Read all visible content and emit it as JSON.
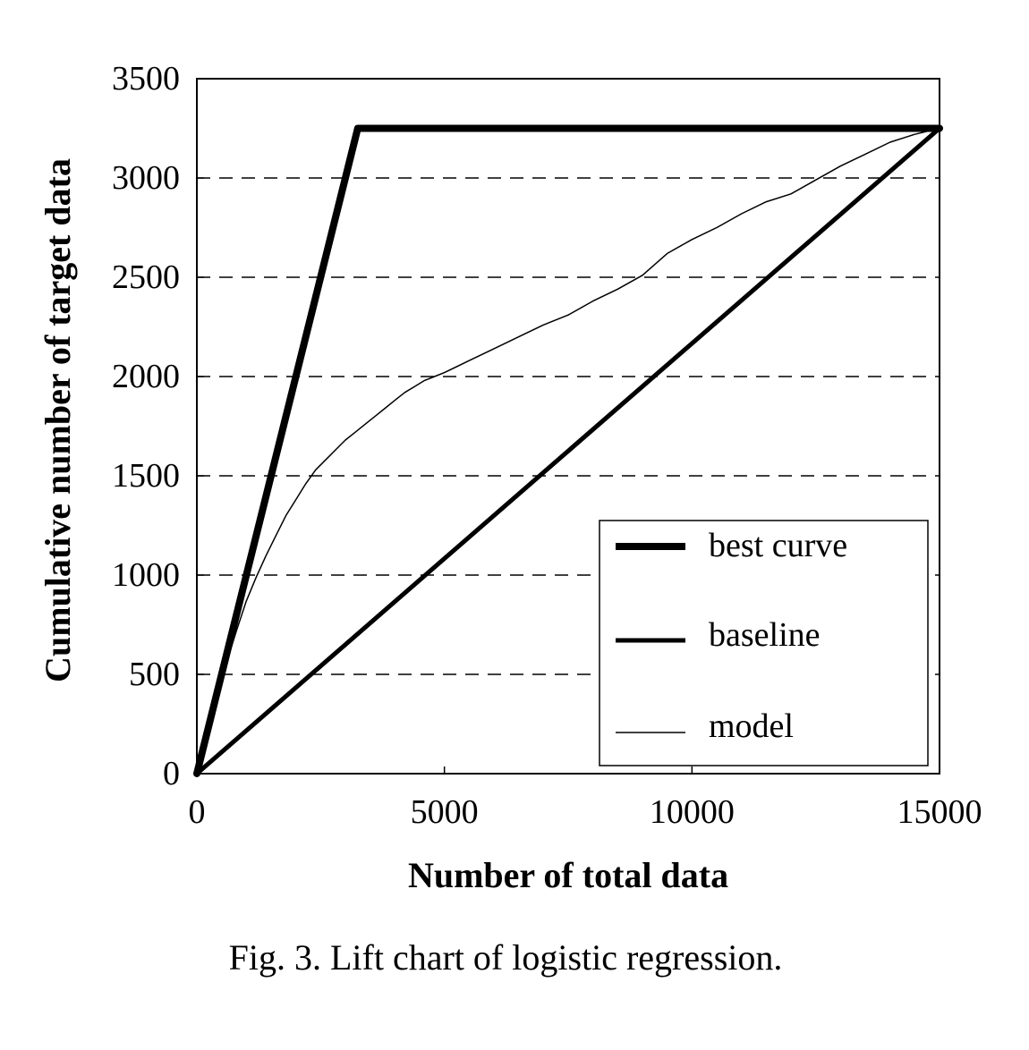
{
  "chart_data": {
    "type": "line",
    "xlabel": "Number of total data",
    "ylabel": "Cumulative number of target data",
    "xlim": [
      0,
      15000
    ],
    "ylim": [
      0,
      3500
    ],
    "x_ticks": [
      "0",
      "5000",
      "10000",
      "15000"
    ],
    "y_ticks": [
      "0",
      "500",
      "1000",
      "1500",
      "2000",
      "2500",
      "3000",
      "3500"
    ],
    "grid": "horizontal dashed",
    "legend_position": "bottom-right",
    "series": [
      {
        "name": "best curve",
        "style": "thick",
        "x": [
          0,
          3250,
          15000
        ],
        "y": [
          0,
          3250,
          3250
        ]
      },
      {
        "name": "baseline",
        "style": "medium",
        "x": [
          0,
          15000
        ],
        "y": [
          0,
          3250
        ]
      },
      {
        "name": "model",
        "style": "thin",
        "x": [
          0,
          200,
          400,
          600,
          800,
          1000,
          1200,
          1400,
          1600,
          1800,
          2000,
          2200,
          2400,
          2600,
          2800,
          3000,
          3200,
          3400,
          3600,
          3800,
          4000,
          4200,
          4400,
          4600,
          4800,
          5000,
          5500,
          6000,
          6500,
          7000,
          7500,
          8000,
          8500,
          9000,
          9500,
          10000,
          10500,
          11000,
          11500,
          12000,
          12500,
          13000,
          13500,
          14000,
          14500,
          15000
        ],
        "y": [
          0,
          200,
          390,
          560,
          720,
          870,
          990,
          1100,
          1200,
          1300,
          1380,
          1460,
          1530,
          1580,
          1630,
          1680,
          1720,
          1760,
          1800,
          1840,
          1880,
          1920,
          1950,
          1980,
          2000,
          2020,
          2080,
          2140,
          2200,
          2260,
          2310,
          2380,
          2440,
          2510,
          2620,
          2690,
          2750,
          2820,
          2880,
          2920,
          2990,
          3060,
          3120,
          3180,
          3220,
          3250
        ]
      }
    ],
    "caption": "Fig. 3.  Lift chart of logistic regression."
  }
}
